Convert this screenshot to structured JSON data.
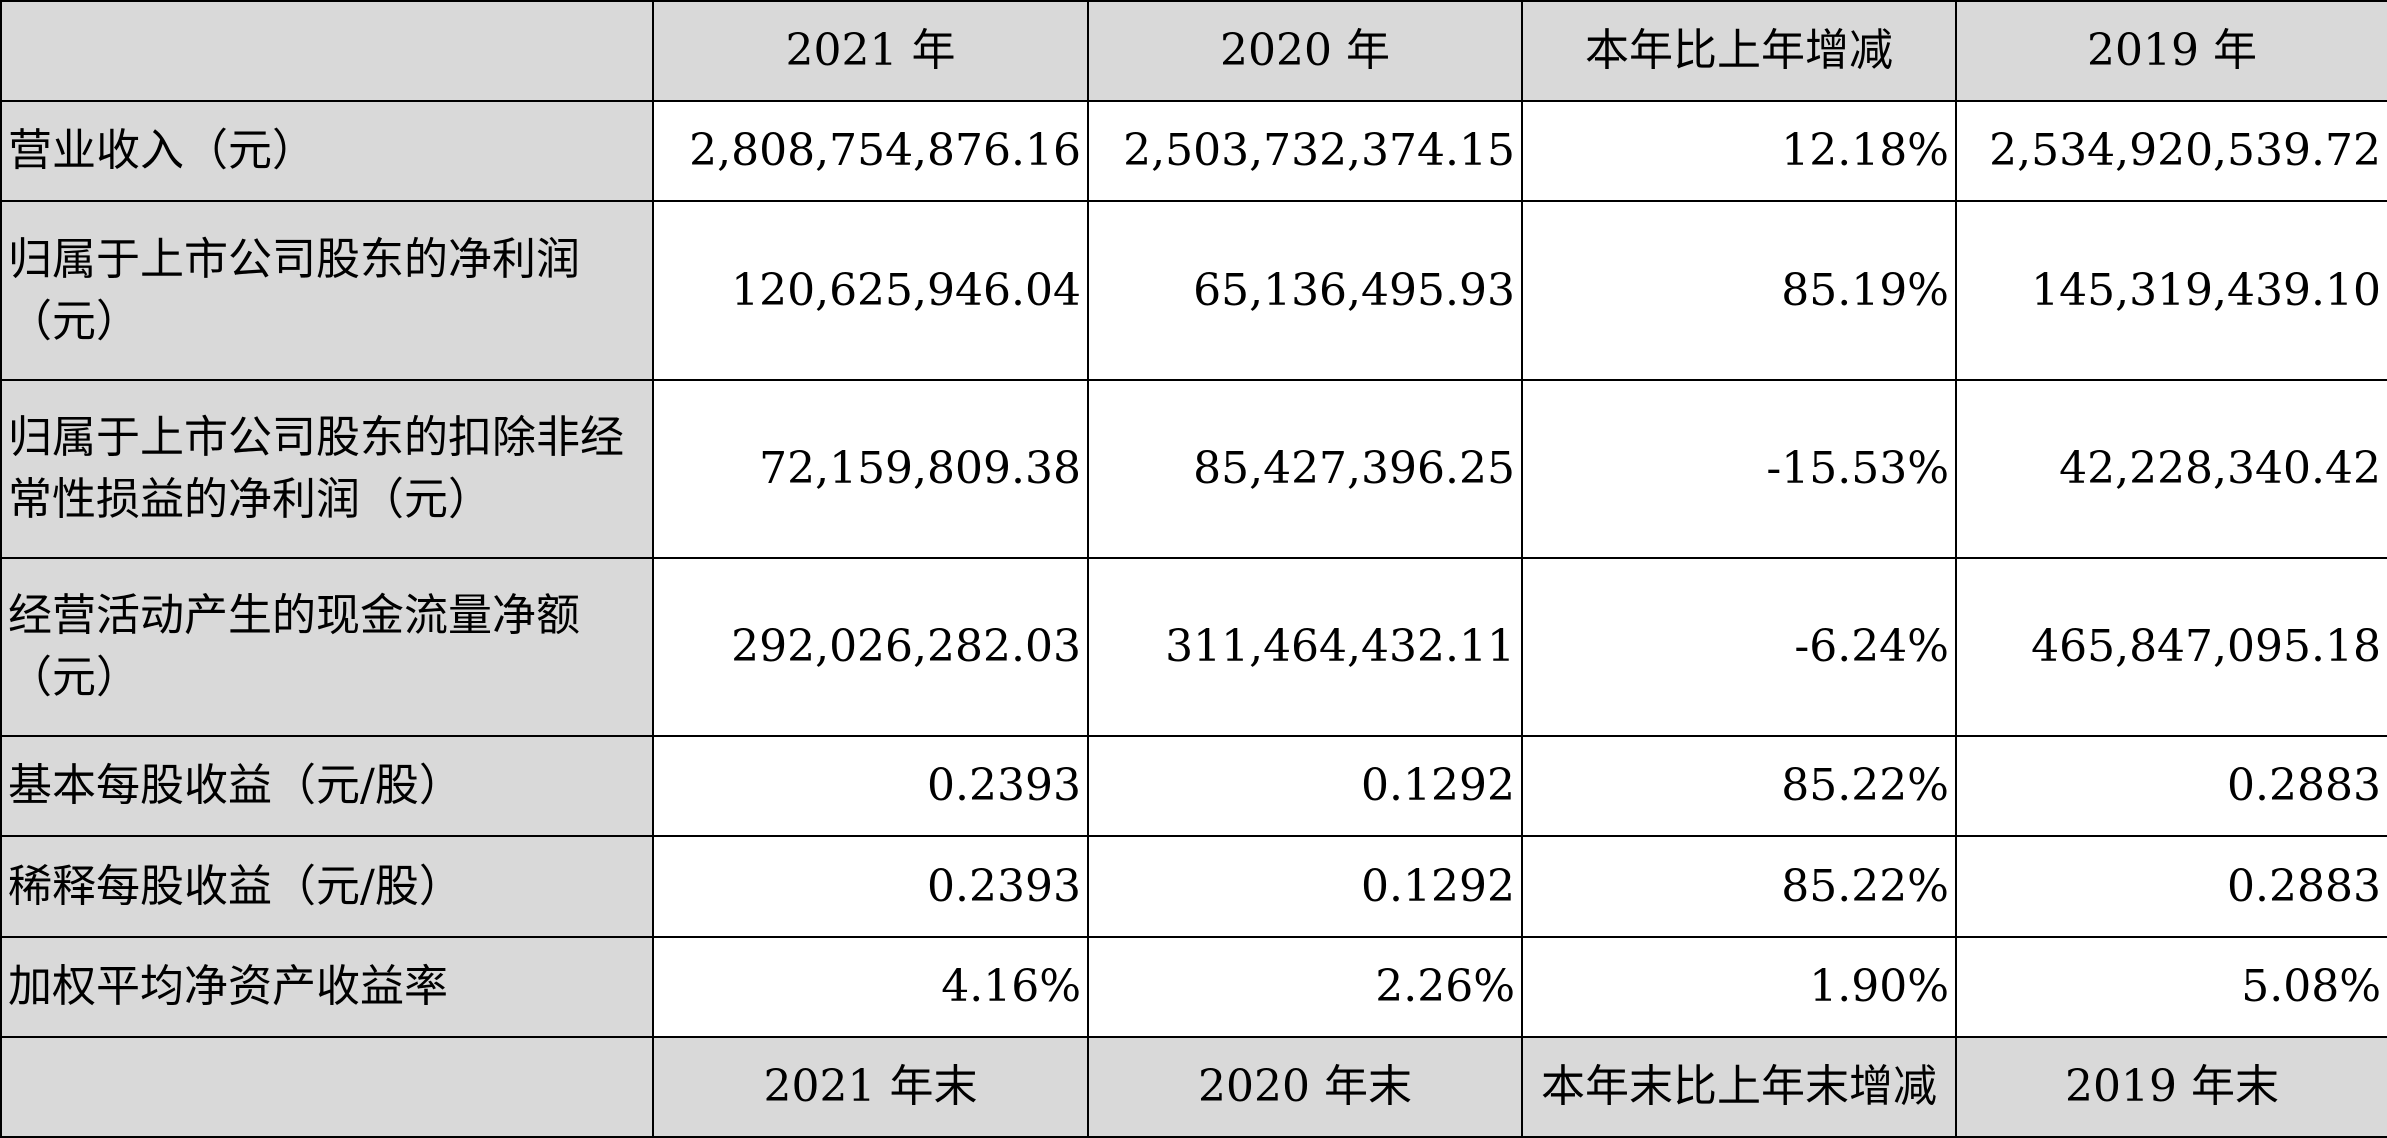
{
  "header_top": [
    "",
    "2021 年",
    "2020 年",
    "本年比上年增减",
    "2019 年"
  ],
  "rows": [
    {
      "label": "营业收入（元）",
      "values": [
        "2,808,754,876.16",
        "2,503,732,374.15",
        "12.18%",
        "2,534,920,539.72"
      ]
    },
    {
      "label": "归属于上市公司股东的净利润（元）",
      "values": [
        "120,625,946.04",
        "65,136,495.93",
        "85.19%",
        "145,319,439.10"
      ]
    },
    {
      "label": "归属于上市公司股东的扣除非经常性损益的净利润（元）",
      "values": [
        "72,159,809.38",
        "85,427,396.25",
        "-15.53%",
        "42,228,340.42"
      ]
    },
    {
      "label": "经营活动产生的现金流量净额（元）",
      "values": [
        "292,026,282.03",
        "311,464,432.11",
        "-6.24%",
        "465,847,095.18"
      ]
    },
    {
      "label": "基本每股收益（元/股）",
      "values": [
        "0.2393",
        "0.1292",
        "85.22%",
        "0.2883"
      ]
    },
    {
      "label": "稀释每股收益（元/股）",
      "values": [
        "0.2393",
        "0.1292",
        "85.22%",
        "0.2883"
      ]
    },
    {
      "label": "加权平均净资产收益率",
      "values": [
        "4.16%",
        "2.26%",
        "1.90%",
        "5.08%"
      ]
    }
  ],
  "header_bottom": [
    "",
    "2021 年末",
    "2020 年末",
    "本年末比上年末增减",
    "2019 年末"
  ]
}
